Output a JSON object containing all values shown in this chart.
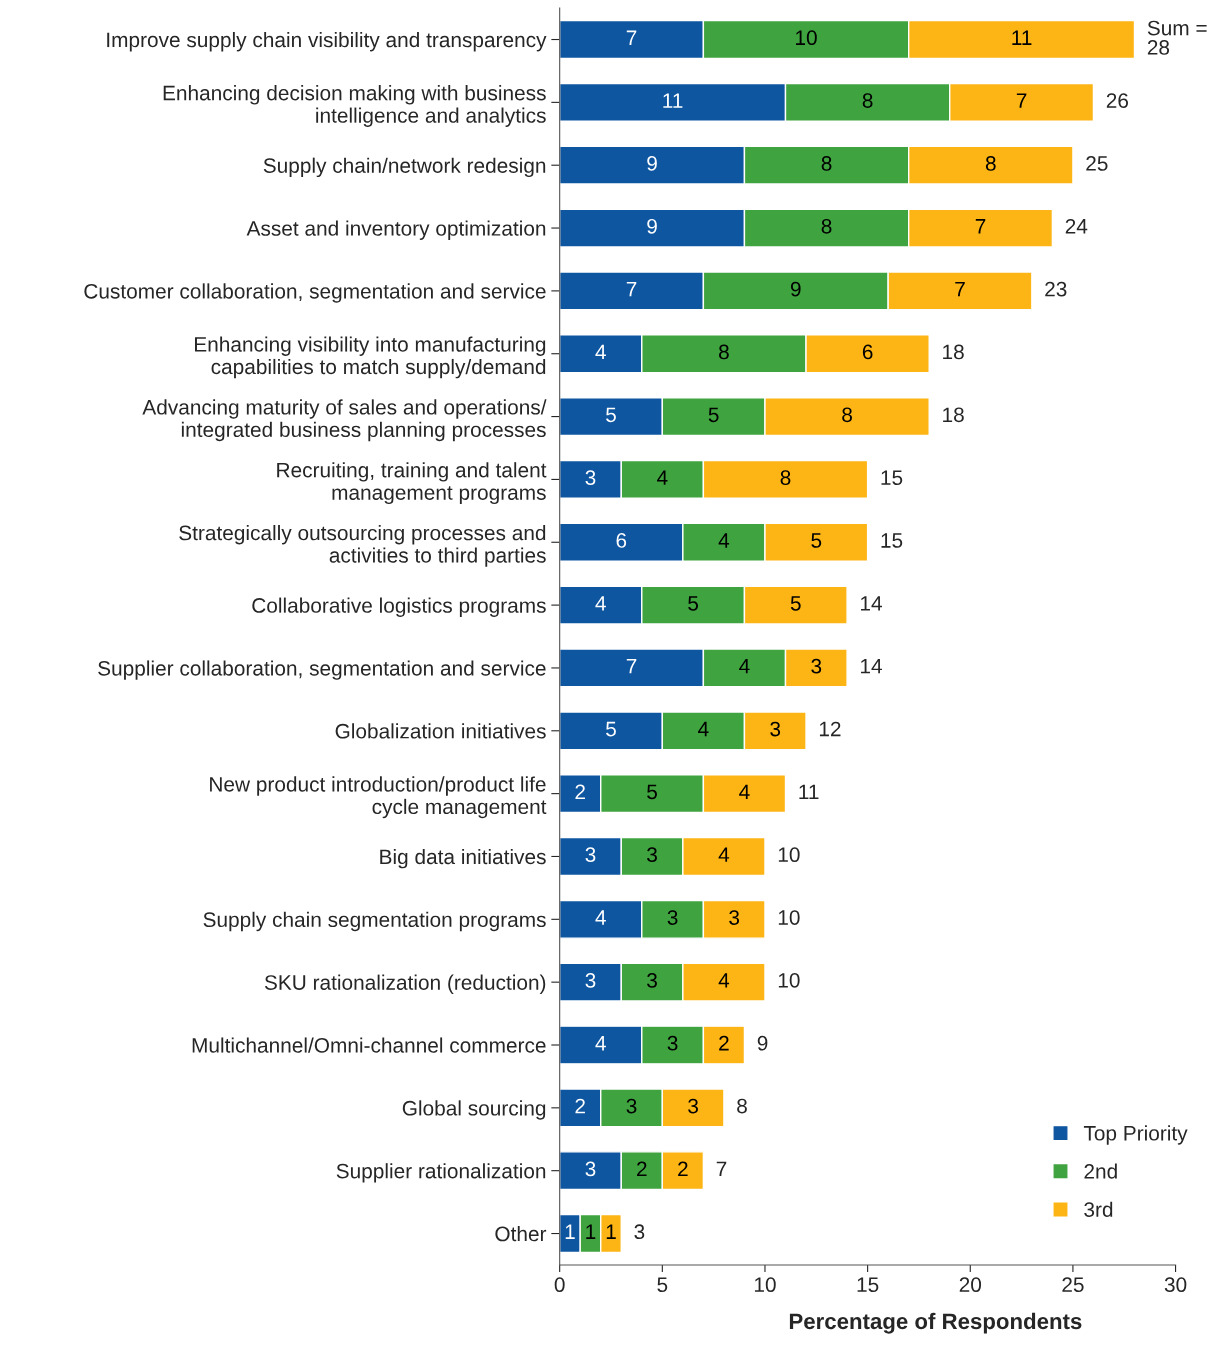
{
  "chart_data": {
    "type": "bar",
    "orientation": "horizontal",
    "stacked": true,
    "xlabel": "Percentage of Respondents",
    "categories": [
      "Improve supply chain visibility and transparency",
      "Enhancing decision making with business\nintelligence and analytics",
      "Supply chain/network redesign",
      "Asset and inventory optimization",
      "Customer collaboration, segmentation and service",
      "Enhancing visibility into manufacturing\ncapabilities to match supply/demand",
      "Advancing maturity of sales and operations/\nintegrated business planning processes",
      "Recruiting, training and talent\nmanagement programs",
      "Strategically outsourcing processes and\nactivities to third parties",
      "Collaborative logistics programs",
      "Supplier collaboration, segmentation and service",
      "Globalization initiatives",
      "New product introduction/product life\ncycle management",
      "Big data initiatives",
      "Supply chain segmentation programs",
      "SKU rationalization (reduction)",
      "Multichannel/Omni-channel commerce",
      "Global sourcing",
      "Supplier rationalization",
      "Other"
    ],
    "series": [
      {
        "name": "Top Priority",
        "color": "#0f56a0",
        "values": [
          7,
          11,
          9,
          9,
          7,
          4,
          5,
          3,
          6,
          4,
          7,
          5,
          2,
          3,
          4,
          3,
          4,
          2,
          3,
          1
        ]
      },
      {
        "name": "2nd",
        "color": "#3fa33f",
        "values": [
          10,
          8,
          8,
          8,
          9,
          8,
          5,
          4,
          4,
          5,
          4,
          4,
          5,
          3,
          3,
          3,
          3,
          3,
          2,
          1
        ]
      },
      {
        "name": "3rd",
        "color": "#fdb515",
        "values": [
          11,
          7,
          8,
          7,
          7,
          6,
          8,
          8,
          5,
          5,
          3,
          3,
          4,
          4,
          3,
          4,
          2,
          3,
          2,
          1
        ]
      }
    ],
    "totals": [
      "Sum =\n28",
      "26",
      "25",
      "24",
      "23",
      "18",
      "18",
      "15",
      "15",
      "14",
      "14",
      "12",
      "11",
      "10",
      "10",
      "10",
      "9",
      "8",
      "7",
      "3"
    ],
    "data_labels": true,
    "xlim": [
      0,
      30
    ],
    "xticks": [
      0,
      5,
      10,
      15,
      20,
      25,
      30
    ],
    "grid": false,
    "legend": "bottom right"
  }
}
